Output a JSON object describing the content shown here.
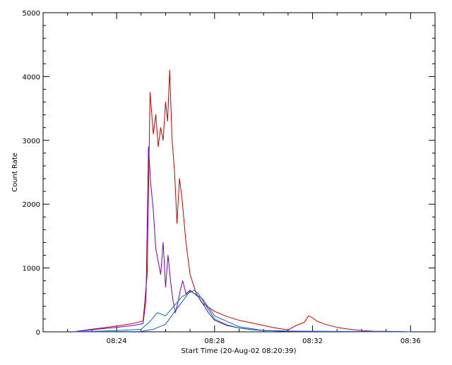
{
  "chart_data": {
    "type": "line",
    "title": "",
    "xlabel": "Start Time (20-Aug-02 08:20:39)",
    "ylabel": "Count Rate",
    "xlim": [
      "08:21:00",
      "08:37:00"
    ],
    "ylim": [
      0,
      5000
    ],
    "x_tick_labels": [
      "08:24",
      "08:28",
      "08:32",
      "08:36"
    ],
    "x_tick_values": [
      "08:24:00",
      "08:28:00",
      "08:32:00",
      "08:36:00"
    ],
    "y_tick_labels": [
      "0",
      "1000",
      "2000",
      "3000",
      "4000",
      "5000"
    ],
    "y_tick_values": [
      0,
      1000,
      2000,
      3000,
      4000,
      5000
    ],
    "grid": false,
    "series": [
      {
        "color": "#c00000",
        "x": [
          "08:22:14",
          "08:23:10",
          "08:24:00",
          "08:24:40",
          "08:25:05",
          "08:25:15",
          "08:25:22",
          "08:25:30",
          "08:25:36",
          "08:25:42",
          "08:25:48",
          "08:25:54",
          "08:26:00",
          "08:26:05",
          "08:26:10",
          "08:26:16",
          "08:26:22",
          "08:26:28",
          "08:26:34",
          "08:26:40",
          "08:26:50",
          "08:27:00",
          "08:27:15",
          "08:27:30",
          "08:28:00",
          "08:28:30",
          "08:29:00",
          "08:29:30",
          "08:30:00",
          "08:30:30",
          "08:31:00",
          "08:31:20",
          "08:31:40",
          "08:31:50",
          "08:32:00",
          "08:32:10",
          "08:32:30",
          "08:33:00",
          "08:33:30",
          "08:34:00",
          "08:34:30",
          "08:35:30",
          "08:36:00"
        ],
        "y": [
          0,
          50,
          90,
          130,
          170,
          900,
          3750,
          3100,
          3400,
          2900,
          3200,
          3000,
          3600,
          3300,
          4100,
          3000,
          2500,
          1700,
          2400,
          2100,
          1400,
          900,
          600,
          450,
          320,
          240,
          180,
          140,
          100,
          60,
          30,
          100,
          150,
          250,
          220,
          170,
          120,
          70,
          40,
          20,
          10,
          5,
          0
        ]
      },
      {
        "color": "#7000c0",
        "x": [
          "08:22:14",
          "08:23:10",
          "08:24:00",
          "08:24:40",
          "08:25:05",
          "08:25:12",
          "08:25:18",
          "08:25:24",
          "08:25:30",
          "08:25:36",
          "08:25:42",
          "08:25:48",
          "08:25:54",
          "08:26:00",
          "08:26:06",
          "08:26:12",
          "08:26:18",
          "08:26:24",
          "08:26:30",
          "08:26:36",
          "08:26:42",
          "08:26:50",
          "08:27:00",
          "08:27:10",
          "08:27:20",
          "08:27:30",
          "08:27:45",
          "08:28:00",
          "08:28:30",
          "08:29:00",
          "08:29:30",
          "08:30:00",
          "08:31:00",
          "08:32:00",
          "08:33:00",
          "08:34:00",
          "08:35:00",
          "08:36:00"
        ],
        "y": [
          0,
          40,
          70,
          100,
          130,
          500,
          2900,
          2300,
          1900,
          1300,
          1100,
          900,
          1400,
          700,
          1200,
          800,
          500,
          300,
          450,
          650,
          800,
          600,
          650,
          600,
          550,
          450,
          300,
          180,
          100,
          60,
          35,
          20,
          10,
          8,
          5,
          3,
          2,
          0
        ]
      },
      {
        "color": "#007a8a",
        "x": [
          "08:22:14",
          "08:23:10",
          "08:24:00",
          "08:25:00",
          "08:25:20",
          "08:25:40",
          "08:26:00",
          "08:26:20",
          "08:26:40",
          "08:27:00",
          "08:27:10",
          "08:27:20",
          "08:27:30",
          "08:27:45",
          "08:28:00",
          "08:28:30",
          "08:29:00",
          "08:29:30",
          "08:30:00",
          "08:31:00",
          "08:32:00",
          "08:33:00",
          "08:34:00",
          "08:35:00",
          "08:36:00"
        ],
        "y": [
          0,
          10,
          20,
          40,
          150,
          300,
          250,
          400,
          550,
          620,
          650,
          600,
          500,
          350,
          200,
          110,
          60,
          35,
          20,
          10,
          8,
          5,
          3,
          2,
          0
        ]
      },
      {
        "color": "#2050d0",
        "x": [
          "08:22:14",
          "08:25:00",
          "08:25:30",
          "08:26:00",
          "08:26:30",
          "08:27:00",
          "08:27:30",
          "08:28:00",
          "08:29:00",
          "08:30:00",
          "08:32:00",
          "08:34:00",
          "08:36:00"
        ],
        "y": [
          0,
          5,
          40,
          120,
          380,
          640,
          520,
          250,
          80,
          20,
          6,
          3,
          0
        ]
      }
    ]
  }
}
